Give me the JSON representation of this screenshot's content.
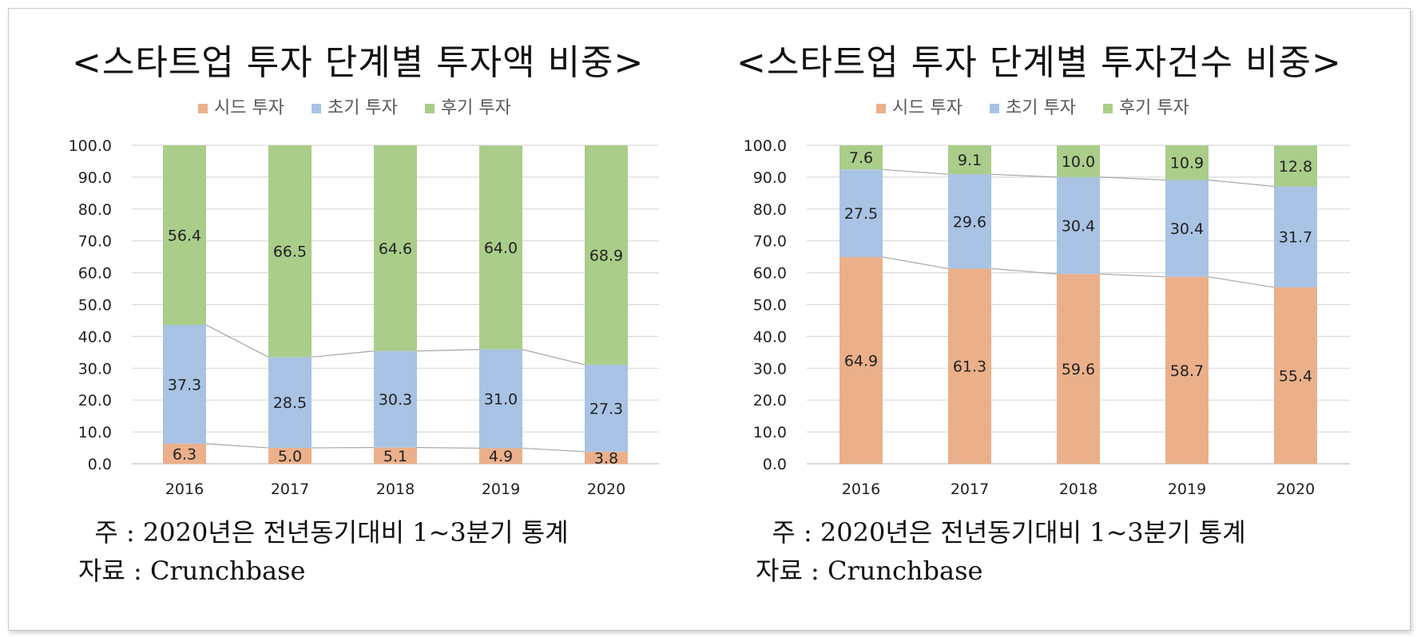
{
  "charts": [
    {
      "title": "<스타트업 투자 단계별 투자액 비중>",
      "note": "  주 : 2020년은 전년동기대비 1~3분기 통계",
      "source": "자료 : Crunchbase"
    },
    {
      "title": "<스타트업 투자 단계별 투자건수 비중>",
      "note": "  주 : 2020년은 전년동기대비 1~3분기 통계",
      "source": "자료 : Crunchbase"
    }
  ],
  "colors": {
    "seed": "#ebb08a",
    "early": "#a8c3e4",
    "late": "#aacd8a",
    "grid": "#d9d9d9",
    "connector": "#a6a6a6"
  },
  "chart_data": [
    {
      "type": "bar",
      "stacked": true,
      "title": "<스타트업 투자 단계별 투자액 비중>",
      "categories": [
        "2016",
        "2017",
        "2018",
        "2019",
        "2020"
      ],
      "series": [
        {
          "name": "시드 투자",
          "values": [
            6.3,
            5.0,
            5.1,
            4.9,
            3.8
          ],
          "labels": [
            "6.3",
            "5.0",
            "5.1",
            "4.9",
            "3.8"
          ]
        },
        {
          "name": "초기 투자",
          "values": [
            37.3,
            28.5,
            30.3,
            31.0,
            27.3
          ],
          "labels": [
            "37.3",
            "28.5",
            "30.3",
            "31.0",
            "27.3"
          ]
        },
        {
          "name": "후기 투자",
          "values": [
            56.4,
            66.5,
            64.6,
            64.0,
            68.9
          ],
          "labels": [
            "56.4",
            "66.5",
            "64.6",
            "64.0",
            "68.9"
          ]
        }
      ],
      "ylim": [
        0,
        100
      ],
      "yticks": [
        "0.0",
        "10.0",
        "20.0",
        "30.0",
        "40.0",
        "50.0",
        "60.0",
        "70.0",
        "80.0",
        "90.0",
        "100.0"
      ],
      "grid": true,
      "series_lines": true,
      "legend": "top"
    },
    {
      "type": "bar",
      "stacked": true,
      "title": "<스타트업 투자 단계별 투자건수 비중>",
      "categories": [
        "2016",
        "2017",
        "2018",
        "2019",
        "2020"
      ],
      "series": [
        {
          "name": "시드 투자",
          "values": [
            64.9,
            61.3,
            59.6,
            58.7,
            55.4
          ],
          "labels": [
            "64.9",
            "61.3",
            "59.6",
            "58.7",
            "55.4"
          ]
        },
        {
          "name": "초기 투자",
          "values": [
            27.5,
            29.6,
            30.4,
            30.4,
            31.7
          ],
          "labels": [
            "27.5",
            "29.6",
            "30.4",
            "30.4",
            "31.7"
          ]
        },
        {
          "name": "후기 투자",
          "values": [
            7.6,
            9.1,
            10.0,
            10.9,
            12.8
          ],
          "labels": [
            "7.6",
            "9.1",
            "10.0",
            "10.9",
            "12.8"
          ]
        }
      ],
      "ylim": [
        0,
        100
      ],
      "yticks": [
        "0.0",
        "10.0",
        "20.0",
        "30.0",
        "40.0",
        "50.0",
        "60.0",
        "70.0",
        "80.0",
        "90.0",
        "100.0"
      ],
      "grid": true,
      "series_lines": true,
      "legend": "top"
    }
  ]
}
